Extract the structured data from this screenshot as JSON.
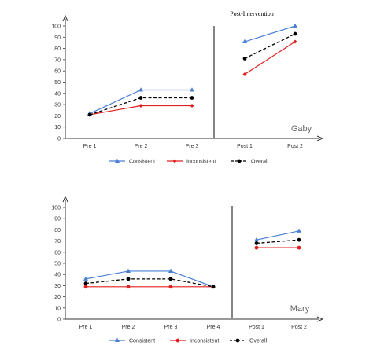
{
  "chart_data": [
    {
      "type": "line",
      "participant": "Gaby",
      "annotation": "Post-Intervention",
      "categories": [
        "Pre 1",
        "Pre 2",
        "Pre 3",
        "Post 1",
        "Post 2"
      ],
      "phase_break_after": "Pre 3",
      "ylim": [
        0,
        100
      ],
      "yticks": [
        0,
        10,
        20,
        30,
        40,
        50,
        60,
        70,
        80,
        90,
        100
      ],
      "legend_position": "bottom-center",
      "series": [
        {
          "name": "Consistent",
          "color": "#4a7fd6",
          "marker": "triangle",
          "dashed": false,
          "values": [
            22,
            43,
            43,
            86,
            100
          ]
        },
        {
          "name": "Inconsistent",
          "color": "#e02020",
          "marker": "diamond",
          "dashed": false,
          "values": [
            21,
            29,
            29,
            57,
            86
          ]
        },
        {
          "name": "Overall",
          "color": "#000000",
          "marker": "circle",
          "dashed": true,
          "values": [
            21,
            36,
            36,
            71,
            93
          ]
        }
      ]
    },
    {
      "type": "line",
      "participant": "Mary",
      "categories": [
        "Pre 1",
        "Pre 2",
        "Pre 3",
        "Pre 4",
        "Post 1",
        "Post 2"
      ],
      "phase_break_after": "Pre 4",
      "ylim": [
        0,
        100
      ],
      "yticks": [
        0,
        10,
        20,
        30,
        40,
        50,
        60,
        70,
        80,
        90,
        100
      ],
      "legend_position": "bottom-center",
      "series": [
        {
          "name": "Consistent",
          "color": "#4a7fd6",
          "marker": "triangle",
          "dashed": false,
          "values": [
            36,
            43,
            43,
            29,
            71,
            79
          ]
        },
        {
          "name": "Inconsistent",
          "color": "#e02020",
          "marker": "circle",
          "dashed": false,
          "values": [
            29,
            29,
            29,
            29,
            64,
            64
          ]
        },
        {
          "name": "Overall",
          "color": "#000000",
          "marker": "circle",
          "dashed": true,
          "values": [
            32,
            36,
            36,
            29,
            68,
            71
          ]
        }
      ]
    }
  ]
}
